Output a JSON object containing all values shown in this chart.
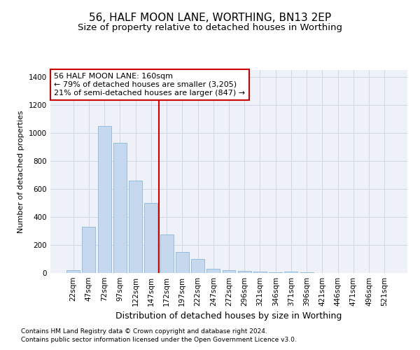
{
  "title": "56, HALF MOON LANE, WORTHING, BN13 2EP",
  "subtitle": "Size of property relative to detached houses in Worthing",
  "xlabel": "Distribution of detached houses by size in Worthing",
  "ylabel": "Number of detached properties",
  "footnote1": "Contains HM Land Registry data © Crown copyright and database right 2024.",
  "footnote2": "Contains public sector information licensed under the Open Government Licence v3.0.",
  "categories": [
    "22sqm",
    "47sqm",
    "72sqm",
    "97sqm",
    "122sqm",
    "147sqm",
    "172sqm",
    "197sqm",
    "222sqm",
    "247sqm",
    "272sqm",
    "296sqm",
    "321sqm",
    "346sqm",
    "371sqm",
    "396sqm",
    "421sqm",
    "446sqm",
    "471sqm",
    "496sqm",
    "521sqm"
  ],
  "values": [
    20,
    330,
    1050,
    930,
    660,
    500,
    275,
    150,
    100,
    30,
    20,
    17,
    12,
    6,
    8,
    4,
    0,
    0,
    0,
    0,
    0
  ],
  "bar_color": "#c5d8ed",
  "bar_edgecolor": "#7bafd4",
  "vline_color": "#cc0000",
  "annotation_text": "56 HALF MOON LANE: 160sqm\n← 79% of detached houses are smaller (3,205)\n21% of semi-detached houses are larger (847) →",
  "annotation_box_color": "#cc0000",
  "ylim": [
    0,
    1450
  ],
  "yticks": [
    0,
    200,
    400,
    600,
    800,
    1000,
    1200,
    1400
  ],
  "grid_color": "#d0d8e8",
  "bg_color": "#eef2f8",
  "plot_bg_color": "#ffffff",
  "title_fontsize": 11,
  "subtitle_fontsize": 9.5,
  "xlabel_fontsize": 9,
  "ylabel_fontsize": 8,
  "tick_fontsize": 7.5,
  "annot_fontsize": 8,
  "footnote_fontsize": 6.5
}
